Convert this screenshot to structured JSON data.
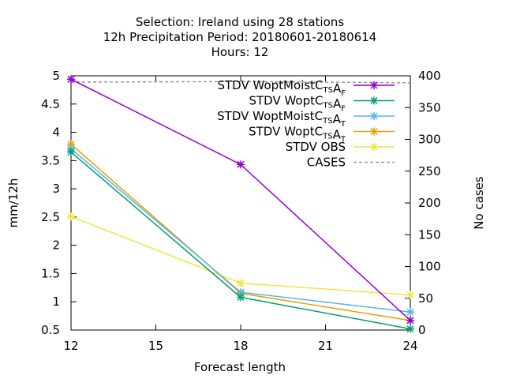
{
  "title": {
    "line1": "Selection: Ireland using    28 stations",
    "line2": "12h Precipitation    Period: 20180601-20180614",
    "line3": "Hours:  12"
  },
  "chart_data": {
    "type": "line",
    "xlabel": "Forecast length",
    "ylabel": "mm/12h",
    "y2label": "No cases",
    "x": [
      12,
      18,
      24
    ],
    "xticks": [
      12,
      15,
      18,
      21,
      24
    ],
    "xlim": [
      12,
      24
    ],
    "ylim": [
      0.5,
      5
    ],
    "yticks": [
      0.5,
      1,
      1.5,
      2,
      2.5,
      3,
      3.5,
      4,
      4.5,
      5
    ],
    "ytick_labels": [
      "0.5",
      "1",
      "1.5",
      "2",
      "2.5",
      "3",
      "3.5",
      "4",
      "4.5",
      "5"
    ],
    "y2lim": [
      0,
      400
    ],
    "y2ticks": [
      0,
      50,
      100,
      150,
      200,
      250,
      300,
      350,
      400
    ],
    "grid": false,
    "legend_position": "top-right",
    "series": [
      {
        "legend_main": "STDV WoptMoist",
        "legend_parts": [
          [
            "C",
            "TS"
          ],
          [
            "A",
            "F"
          ]
        ],
        "color": "#9400d3",
        "values": [
          4.94,
          3.43,
          0.67
        ],
        "marker": "x",
        "axis": "y"
      },
      {
        "legend_main": "STDV Wopt",
        "legend_parts": [
          [
            "C",
            "TS"
          ],
          [
            "A",
            "F"
          ]
        ],
        "color": "#009e73",
        "values": [
          3.65,
          1.08,
          0.52
        ],
        "marker": "x",
        "axis": "y"
      },
      {
        "legend_main": "STDV WoptMoist",
        "legend_parts": [
          [
            "C",
            "TS"
          ],
          [
            "A",
            "T"
          ]
        ],
        "color": "#56b4e9",
        "values": [
          3.71,
          1.17,
          0.82
        ],
        "marker": "x",
        "axis": "y"
      },
      {
        "legend_main": "STDV Wopt",
        "legend_parts": [
          [
            "C",
            "TS"
          ],
          [
            "A",
            "T"
          ]
        ],
        "color": "#e69f00",
        "values": [
          3.79,
          1.15,
          0.67
        ],
        "marker": "x",
        "axis": "y"
      },
      {
        "legend_main": "STDV OBS",
        "legend_parts": [],
        "color": "#f0e442",
        "values": [
          2.51,
          1.33,
          1.12
        ],
        "marker": "x",
        "axis": "y"
      },
      {
        "legend_main": "CASES",
        "legend_parts": [],
        "color": "#999999",
        "values": [
          390,
          391,
          389
        ],
        "marker": "none",
        "dashed": true,
        "axis": "y2"
      }
    ]
  }
}
